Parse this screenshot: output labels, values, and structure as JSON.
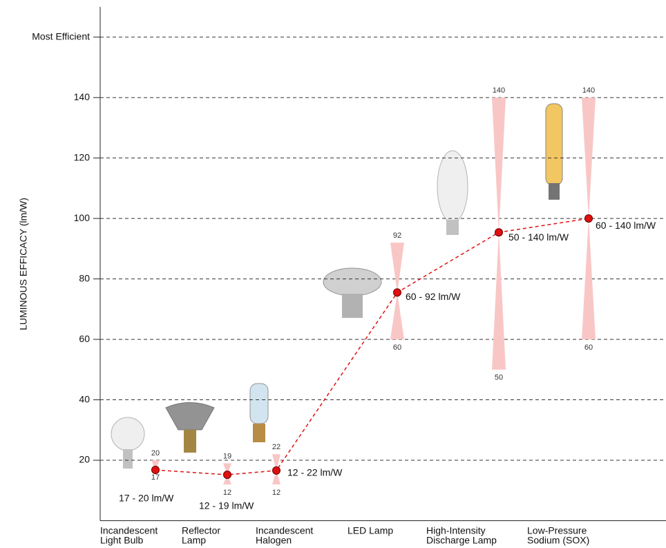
{
  "chart_data": {
    "type": "range-dot",
    "y_label": "LUMINOUS EFFICACY (lm/W)",
    "categories": [
      [
        "Incandescent",
        "Light Bulb"
      ],
      [
        "Reflector",
        "Lamp"
      ],
      [
        "Incandescent",
        "Halogen"
      ],
      [
        "LED Lamp"
      ],
      [
        "High-Intensity",
        "Discharge Lamp"
      ],
      [
        "Low-Pressure",
        "Sodium (SOX)"
      ]
    ],
    "values": [
      16.8,
      15.2,
      16.6,
      75.5,
      95.4,
      100
    ],
    "low": [
      17,
      12,
      12,
      60,
      50,
      60
    ],
    "high": [
      20,
      19,
      22,
      92,
      140,
      140
    ],
    "range_labels": [
      "17 - 20 lm/W",
      "12 - 19 lm/W",
      "12 - 22 lm/W",
      "60 - 92 lm/W",
      "50 - 140 lm/W",
      "60 - 140 lm/W"
    ],
    "color": "#e01010",
    "range_color": "#f9c6c6",
    "ylim": [
      0,
      170
    ],
    "yticks": [
      20,
      40,
      60,
      80,
      100,
      120,
      140,
      {
        "value": 160,
        "label": "Most Efficient"
      }
    ],
    "grid": true
  }
}
